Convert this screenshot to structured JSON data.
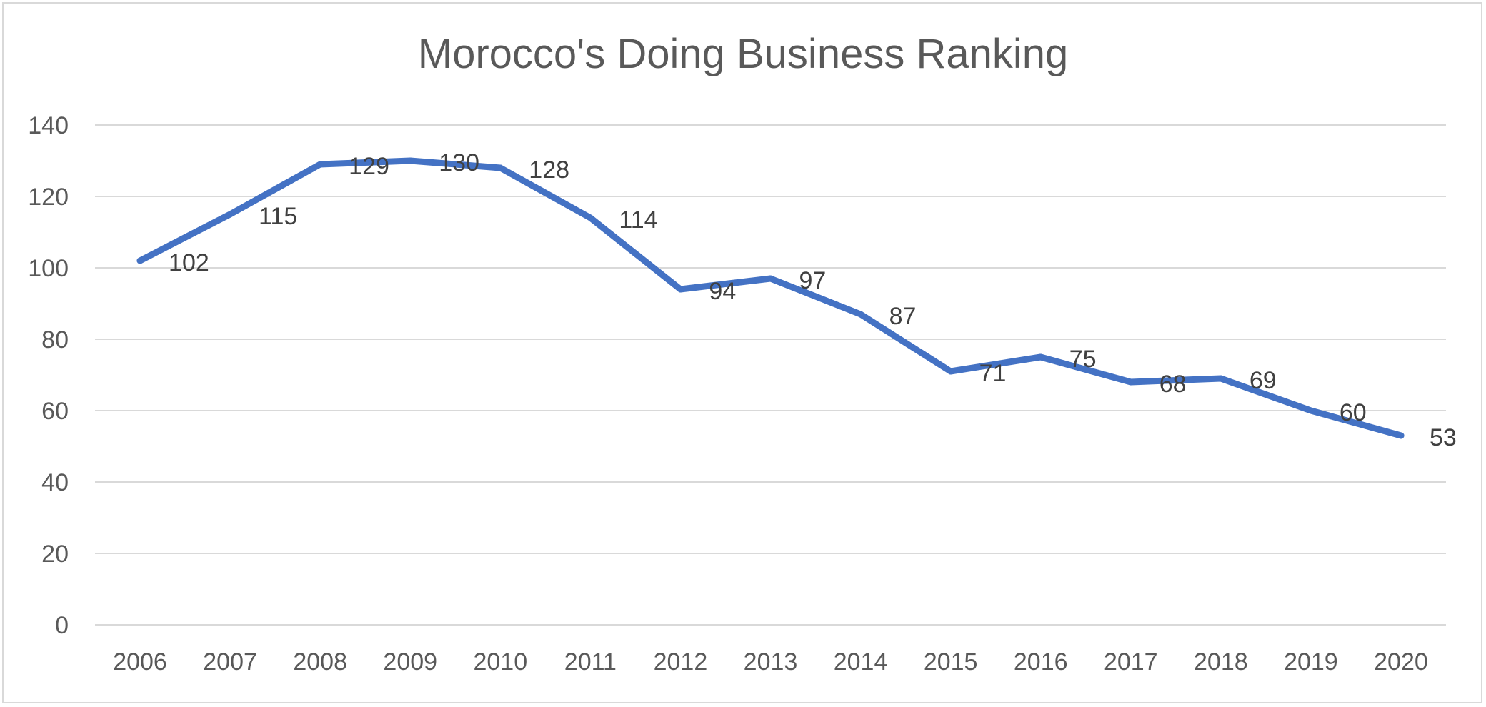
{
  "chart_data": {
    "type": "line",
    "title": "Morocco's Doing Business Ranking",
    "xlabel": "",
    "ylabel": "",
    "categories": [
      "2006",
      "2007",
      "2008",
      "2009",
      "2010",
      "2011",
      "2012",
      "2013",
      "2014",
      "2015",
      "2016",
      "2017",
      "2018",
      "2019",
      "2020"
    ],
    "series": [
      {
        "values": [
          102,
          115,
          129,
          130,
          128,
          114,
          94,
          97,
          87,
          71,
          75,
          68,
          69,
          60,
          53
        ]
      }
    ],
    "ylim": [
      0,
      140
    ],
    "yticks": [
      0,
      20,
      40,
      60,
      80,
      100,
      120,
      140
    ],
    "grid": true,
    "legend": "none",
    "line_color": "#4472c4",
    "grid_color": "#d9d9d9",
    "data_labels": true
  }
}
